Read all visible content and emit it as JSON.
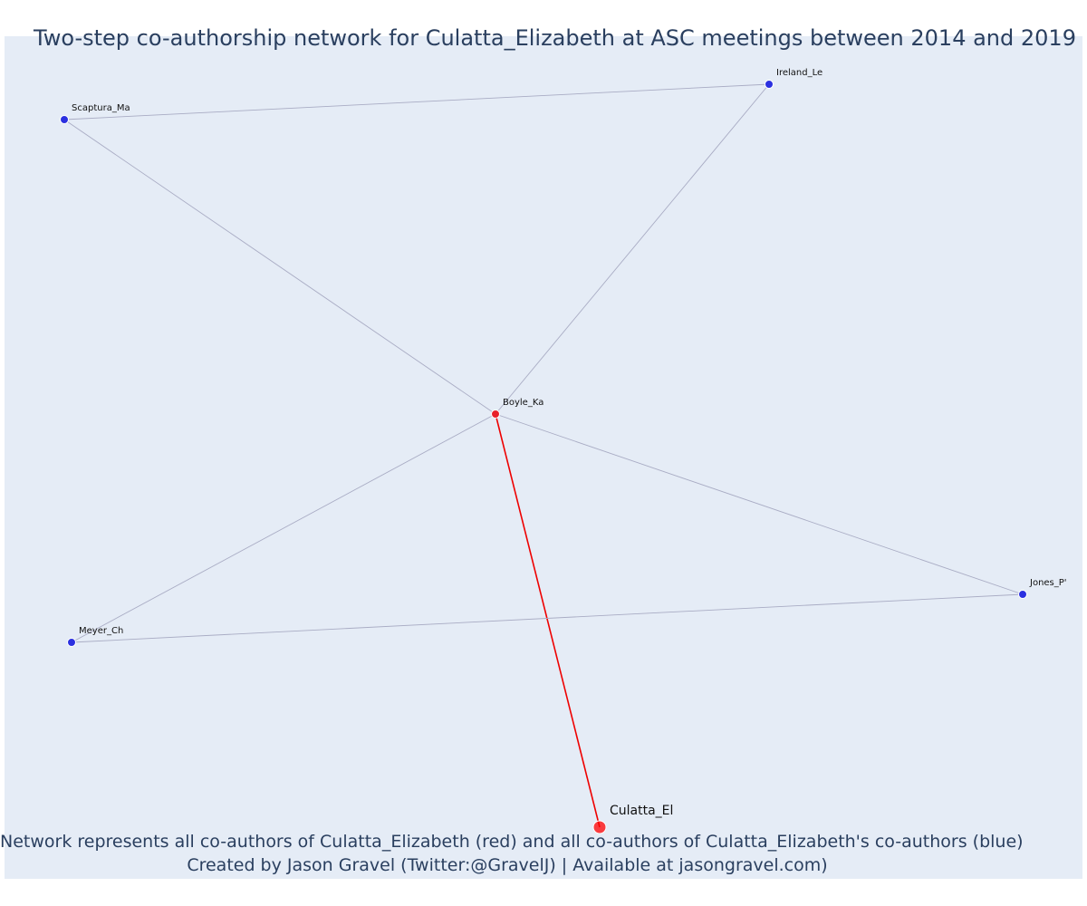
{
  "title": "Two-step co-authorship network for Culatta_Elizabeth at ASC meetings between 2014 and 2019",
  "footer": {
    "line1": "Network represents all co-authors of Culatta_Elizabeth (red) and all co-authors of Culatta_Elizabeth's co-authors (blue)",
    "line2": "Created by Jason Gravel (Twitter:@GravelJ) | Available at jasongravel.com)"
  },
  "colors": {
    "background": "#e5ecf6",
    "ego": "#ff0000",
    "coauthor": "#e8202a",
    "second_step": "#2b30e0",
    "edge": "#a9acc4",
    "ego_edge": "#ee0000",
    "text": "#2a3f5f"
  },
  "nodes": [
    {
      "id": "Culatta_El",
      "label": "Culatta_El",
      "role": "ego"
    },
    {
      "id": "Boyle_Ka",
      "label": "Boyle_Ka",
      "role": "coauthor"
    },
    {
      "id": "Scaptura_Ma",
      "label": "Scaptura_Ma",
      "role": "second_step"
    },
    {
      "id": "Ireland_Le",
      "label": "Ireland_Le",
      "role": "second_step"
    },
    {
      "id": "Meyer_Ch",
      "label": "Meyer_Ch",
      "role": "second_step"
    },
    {
      "id": "Jones_P",
      "label": "Jones_P'",
      "role": "second_step"
    }
  ],
  "edges": [
    {
      "source": "Culatta_El",
      "target": "Boyle_Ka",
      "type": "ego"
    },
    {
      "source": "Boyle_Ka",
      "target": "Scaptura_Ma",
      "type": "other"
    },
    {
      "source": "Boyle_Ka",
      "target": "Ireland_Le",
      "type": "other"
    },
    {
      "source": "Boyle_Ka",
      "target": "Meyer_Ch",
      "type": "other"
    },
    {
      "source": "Boyle_Ka",
      "target": "Jones_P",
      "type": "other"
    },
    {
      "source": "Scaptura_Ma",
      "target": "Ireland_Le",
      "type": "other"
    },
    {
      "source": "Meyer_Ch",
      "target": "Jones_P",
      "type": "other"
    }
  ]
}
